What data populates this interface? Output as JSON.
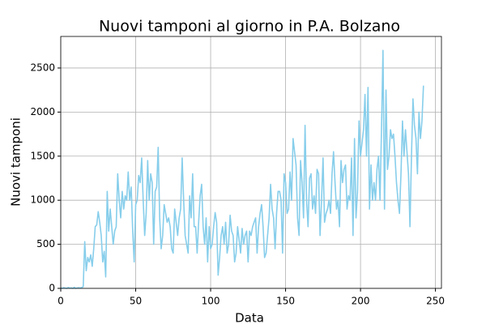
{
  "chart_data": {
    "type": "line",
    "title": "Nuovi tamponi al giorno in P.A. Bolzano",
    "xlabel": "Data",
    "ylabel": "Nuovi tamponi",
    "color": "#87ceeb",
    "grid": true,
    "xlim": [
      0,
      254
    ],
    "ylim": [
      0,
      2858
    ],
    "xticks": [
      0,
      50,
      100,
      150,
      200,
      250
    ],
    "yticks": [
      0,
      500,
      1000,
      1500,
      2000,
      2500
    ],
    "x": [
      0,
      1,
      2,
      3,
      4,
      5,
      6,
      7,
      8,
      9,
      10,
      11,
      12,
      13,
      14,
      15,
      16,
      17,
      18,
      19,
      20,
      21,
      22,
      23,
      24,
      25,
      26,
      27,
      28,
      29,
      30,
      31,
      32,
      33,
      34,
      35,
      36,
      37,
      38,
      39,
      40,
      41,
      42,
      43,
      44,
      45,
      46,
      47,
      48,
      49,
      50,
      51,
      52,
      53,
      54,
      55,
      56,
      57,
      58,
      59,
      60,
      61,
      62,
      63,
      64,
      65,
      66,
      67,
      68,
      69,
      70,
      71,
      72,
      73,
      74,
      75,
      76,
      77,
      78,
      79,
      80,
      81,
      82,
      83,
      84,
      85,
      86,
      87,
      88,
      89,
      90,
      91,
      92,
      93,
      94,
      95,
      96,
      97,
      98,
      99,
      100,
      101,
      102,
      103,
      104,
      105,
      106,
      107,
      108,
      109,
      110,
      111,
      112,
      113,
      114,
      115,
      116,
      117,
      118,
      119,
      120,
      121,
      122,
      123,
      124,
      125,
      126,
      127,
      128,
      129,
      130,
      131,
      132,
      133,
      134,
      135,
      136,
      137,
      138,
      139,
      140,
      141,
      142,
      143,
      144,
      145,
      146,
      147,
      148,
      149,
      150,
      151,
      152,
      153,
      154,
      155,
      156,
      157,
      158,
      159,
      160,
      161,
      162,
      163,
      164,
      165,
      166,
      167,
      168,
      169,
      170,
      171,
      172,
      173,
      174,
      175,
      176,
      177,
      178,
      179,
      180,
      181,
      182,
      183,
      184,
      185,
      186,
      187,
      188,
      189,
      190,
      191,
      192,
      193,
      194,
      195,
      196,
      197,
      198,
      199,
      200,
      201,
      202,
      203,
      204,
      205,
      206,
      207,
      208,
      209,
      210,
      211,
      212,
      213,
      214,
      215,
      216,
      217,
      218,
      219,
      220,
      221,
      222,
      223,
      224,
      225,
      226,
      227,
      228,
      229,
      230,
      231,
      232,
      233,
      234,
      235,
      236,
      237,
      238,
      239,
      240,
      241,
      242
    ],
    "values": [
      5,
      0,
      8,
      3,
      0,
      10,
      2,
      6,
      0,
      12,
      0,
      5,
      8,
      3,
      10,
      20,
      530,
      200,
      350,
      300,
      380,
      250,
      450,
      700,
      720,
      870,
      750,
      600,
      300,
      420,
      130,
      1100,
      650,
      900,
      700,
      500,
      650,
      700,
      1300,
      1000,
      800,
      1100,
      900,
      1050,
      1000,
      1320,
      1000,
      1150,
      650,
      300,
      950,
      1000,
      1280,
      1200,
      1480,
      1000,
      600,
      850,
      1450,
      1000,
      1300,
      1200,
      500,
      1100,
      1150,
      1600,
      800,
      450,
      600,
      950,
      850,
      750,
      800,
      700,
      450,
      400,
      900,
      750,
      600,
      800,
      900,
      1480,
      1000,
      600,
      500,
      400,
      1050,
      800,
      1300,
      700,
      700,
      400,
      750,
      1050,
      1180,
      700,
      500,
      800,
      300,
      700,
      450,
      500,
      700,
      860,
      750,
      150,
      350,
      600,
      700,
      500,
      750,
      400,
      500,
      830,
      650,
      600,
      300,
      400,
      700,
      550,
      400,
      680,
      500,
      600,
      650,
      300,
      650,
      600,
      700,
      750,
      800,
      400,
      700,
      850,
      950,
      700,
      350,
      400,
      600,
      800,
      1180,
      900,
      800,
      450,
      850,
      1100,
      1100,
      1000,
      400,
      1300,
      1200,
      850,
      900,
      1320,
      1000,
      1700,
      1550,
      1400,
      800,
      600,
      1450,
      1200,
      800,
      1850,
      1000,
      700,
      1250,
      1300,
      900,
      1050,
      850,
      1350,
      1300,
      600,
      1000,
      1480,
      750,
      850,
      900,
      1000,
      850,
      1300,
      1550,
      1200,
      900,
      1000,
      700,
      1450,
      1200,
      1350,
      1400,
      900,
      1050,
      1000,
      1480,
      600,
      1700,
      800,
      1100,
      1900,
      1500,
      1650,
      1800,
      2200,
      1500,
      2280,
      900,
      1400,
      1000,
      1200,
      1000,
      1350,
      1500,
      1000,
      1800,
      2700,
      900,
      2250,
      1350,
      1500,
      1800,
      1700,
      1750,
      1500,
      1200,
      1000,
      850,
      1300,
      1900,
      1500,
      1800,
      1550,
      1300,
      700,
      1500,
      2150,
      1850,
      1700,
      1300,
      2000,
      1700,
      1900,
      2300
    ]
  }
}
